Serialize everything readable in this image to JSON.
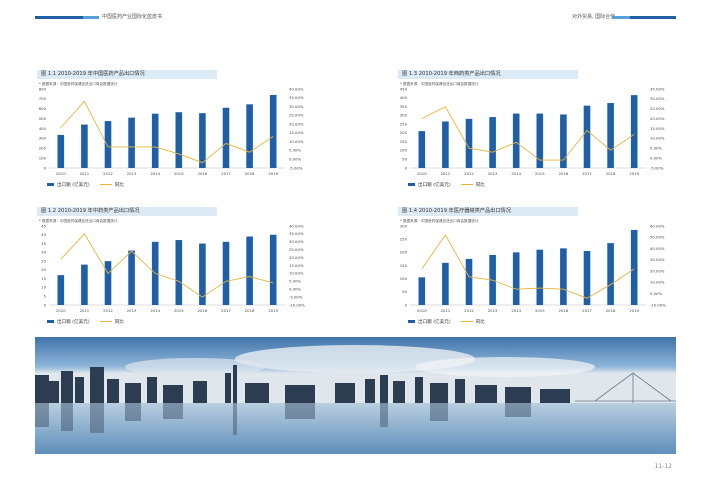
{
  "header": {
    "left_title": "中国医药产业国际化蓝皮书",
    "right_title": "对外贸易, 国际合作"
  },
  "page_number": "11-12",
  "colors": {
    "bar": "#1f5fa8",
    "line": "#e8b43c",
    "title_band": "#dceaf6"
  },
  "charts": [
    {
      "title": "图 1.1 2010-2019 年中国医药产品出口情况",
      "source": "* 数据来源：中国医药保健品进出口商会数据统计",
      "legend_bar": "出口额 (亿美元)",
      "legend_line": "同比",
      "y_left_ticks": [
        "800",
        "700",
        "600",
        "500",
        "400",
        "300",
        "200",
        "100",
        "0"
      ],
      "y_right_ticks": [
        "40.00%",
        "35.00%",
        "30.00%",
        "25.00%",
        "20.00%",
        "15.00%",
        "10.00%",
        "5.00%",
        "0.00%",
        "-5.00%"
      ]
    },
    {
      "title": "图 1.3 2010-2019 年西药类产品出口情况",
      "source": "* 数据来源：中国医药保健品进出口商会数据统计",
      "legend_bar": "出口额 (亿美元)",
      "legend_line": "同比",
      "y_left_ticks": [
        "450",
        "400",
        "350",
        "300",
        "250",
        "200",
        "150",
        "100",
        "50",
        "0"
      ],
      "y_right_ticks": [
        "35.00%",
        "30.00%",
        "25.00%",
        "20.00%",
        "15.00%",
        "10.00%",
        "5.00%",
        "0.00%",
        "-5.00%"
      ]
    },
    {
      "title": "图 1.2 2010-2019 年中药类产品出口情况",
      "source": "* 数据来源：中国医药保健品进出口商会数据统计",
      "legend_bar": "出口额 (亿美元)",
      "legend_line": "同比",
      "y_left_ticks": [
        "45",
        "40",
        "35",
        "30",
        "25",
        "20",
        "15",
        "10",
        "5",
        "0"
      ],
      "y_right_ticks": [
        "40.00%",
        "35.00%",
        "30.00%",
        "25.00%",
        "20.00%",
        "15.00%",
        "10.00%",
        "5.00%",
        "0.00%",
        "-5.00%",
        "-10.00%"
      ]
    },
    {
      "title": "图 1.4 2010-2019 年医疗器械类产品出口情况",
      "source": "* 数据来源：中国医药保健品进出口商会数据统计",
      "legend_bar": "出口额 (亿美元)",
      "legend_line": "同比",
      "y_left_ticks": [
        "300",
        "250",
        "200",
        "150",
        "100",
        "50",
        "0"
      ],
      "y_right_ticks": [
        "60.00%",
        "50.00%",
        "40.00%",
        "30.00%",
        "20.00%",
        "10.00%",
        "0.00%",
        "-10.00%"
      ]
    }
  ],
  "chart_data": [
    {
      "type": "bar",
      "categories": [
        "2010",
        "2011",
        "2012",
        "2013",
        "2014",
        "2015",
        "2016",
        "2017",
        "2018",
        "2019"
      ],
      "series": [
        {
          "name": "出口额 (亿美元)",
          "values": [
            335,
            440,
            475,
            510,
            550,
            565,
            555,
            610,
            645,
            740
          ]
        },
        {
          "name": "同比",
          "axis": "right",
          "values": [
            0.18,
            0.33,
            0.07,
            0.07,
            0.07,
            0.03,
            -0.02,
            0.09,
            0.04,
            0.13
          ]
        }
      ],
      "ylim": [
        0,
        800
      ],
      "y2lim": [
        -0.05,
        0.4
      ]
    },
    {
      "type": "bar",
      "categories": [
        "2010",
        "2011",
        "2012",
        "2013",
        "2014",
        "2015",
        "2016",
        "2017",
        "2018",
        "2019"
      ],
      "series": [
        {
          "name": "出口额 (亿美元)",
          "values": [
            210,
            265,
            280,
            290,
            310,
            310,
            305,
            355,
            370,
            415
          ]
        },
        {
          "name": "同比",
          "axis": "right",
          "values": [
            0.2,
            0.26,
            0.05,
            0.03,
            0.08,
            -0.01,
            -0.01,
            0.14,
            0.04,
            0.12
          ]
        }
      ],
      "ylim": [
        0,
        450
      ],
      "y2lim": [
        -0.05,
        0.35
      ]
    },
    {
      "type": "bar",
      "categories": [
        "2010",
        "2011",
        "2012",
        "2013",
        "2014",
        "2015",
        "2016",
        "2017",
        "2018",
        "2019"
      ],
      "series": [
        {
          "name": "出口额 (亿美元)",
          "values": [
            17,
            23,
            25,
            31,
            36,
            37,
            35,
            36,
            39,
            40
          ]
        },
        {
          "name": "同比",
          "axis": "right",
          "values": [
            0.19,
            0.35,
            0.1,
            0.24,
            0.1,
            0.05,
            -0.05,
            0.05,
            0.08,
            0.04
          ]
        }
      ],
      "ylim": [
        0,
        45
      ],
      "y2lim": [
        -0.1,
        0.4
      ]
    },
    {
      "type": "bar",
      "categories": [
        "2010",
        "2011",
        "2012",
        "2013",
        "2014",
        "2015",
        "2016",
        "2017",
        "2018",
        "2019"
      ],
      "series": [
        {
          "name": "出口额 (亿美元)",
          "values": [
            105,
            160,
            175,
            190,
            200,
            210,
            215,
            205,
            235,
            285
          ]
        },
        {
          "name": "同比",
          "axis": "right",
          "values": [
            0.22,
            0.52,
            0.15,
            0.12,
            0.04,
            0.05,
            0.04,
            -0.04,
            0.08,
            0.22
          ]
        }
      ],
      "ylim": [
        0,
        300
      ],
      "y2lim": [
        -0.1,
        0.6
      ]
    }
  ]
}
